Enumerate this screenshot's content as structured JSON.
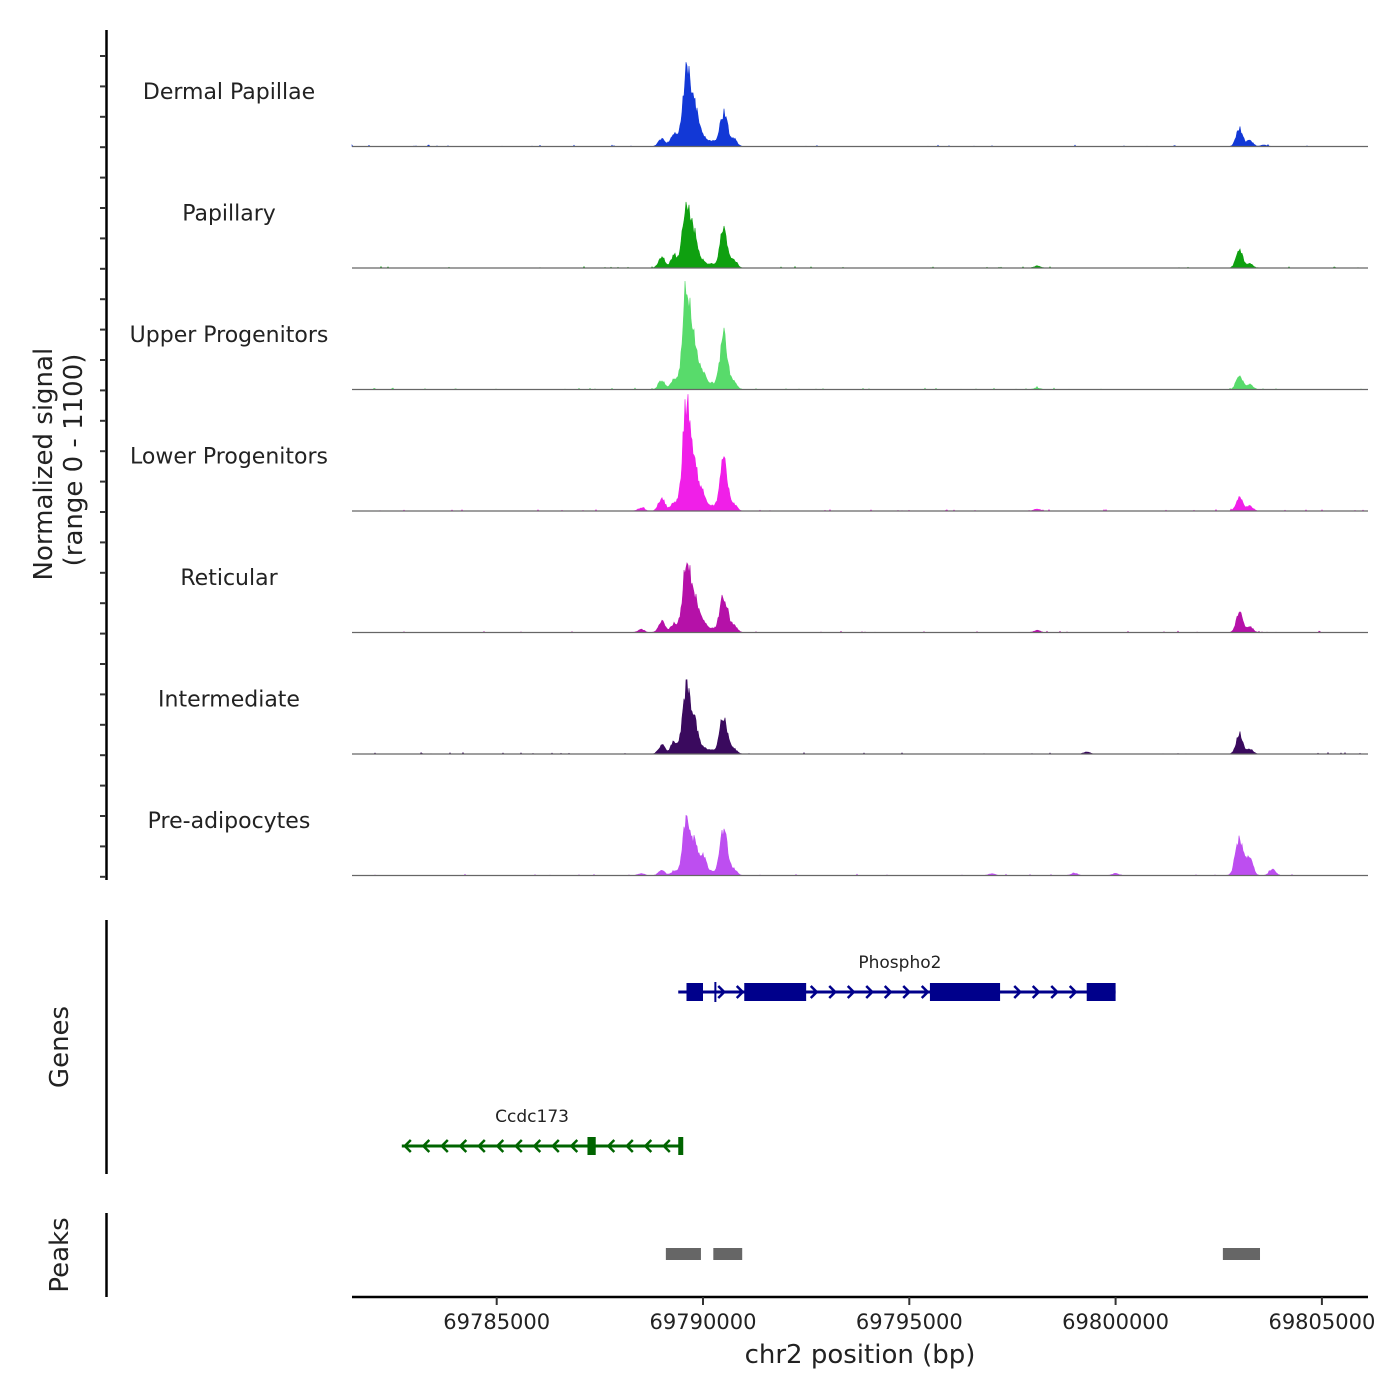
{
  "chart_data": {
    "type": "area",
    "title": "",
    "xlabel": "chr2 position (bp)",
    "ylabel": "Normalized signal\n(range 0 - 1100)",
    "ylabel_lines": [
      "Normalized signal",
      "(range 0 - 1100)"
    ],
    "ylim": [
      0,
      1100
    ],
    "xlim": [
      69781500,
      69806100
    ],
    "x_ticks": [
      69785000,
      69790000,
      69795000,
      69800000,
      69805000
    ],
    "x_tick_labels": [
      "69785000",
      "69790000",
      "69795000",
      "69800000",
      "69805000"
    ],
    "tracks": [
      {
        "name": "Dermal Papillae",
        "color": "#1238D6",
        "peaks": [
          [
            69789000,
            80
          ],
          [
            69789300,
            130
          ],
          [
            69789600,
            740
          ],
          [
            69789800,
            380
          ],
          [
            69790000,
            90
          ],
          [
            69790200,
            60
          ],
          [
            69790500,
            330
          ],
          [
            69790750,
            70
          ],
          [
            69803000,
            180
          ],
          [
            69803250,
            60
          ],
          [
            69803600,
            15
          ]
        ]
      },
      {
        "name": "Papillary",
        "color": "#0FA010",
        "peaks": [
          [
            69789000,
            110
          ],
          [
            69789300,
            130
          ],
          [
            69789600,
            640
          ],
          [
            69789800,
            300
          ],
          [
            69790000,
            70
          ],
          [
            69790200,
            40
          ],
          [
            69790500,
            380
          ],
          [
            69790750,
            80
          ],
          [
            69798100,
            20
          ],
          [
            69803000,
            180
          ],
          [
            69803250,
            40
          ]
        ]
      },
      {
        "name": "Upper Progenitors",
        "color": "#58DB6B",
        "peaks": [
          [
            69789000,
            90
          ],
          [
            69789300,
            110
          ],
          [
            69789600,
            1000
          ],
          [
            69789800,
            400
          ],
          [
            69790000,
            150
          ],
          [
            69790200,
            60
          ],
          [
            69790500,
            540
          ],
          [
            69790750,
            70
          ],
          [
            69798100,
            15
          ],
          [
            69803000,
            140
          ],
          [
            69803250,
            50
          ]
        ]
      },
      {
        "name": "Lower Progenitors",
        "color": "#F01FE8",
        "peaks": [
          [
            69788500,
            30
          ],
          [
            69789000,
            130
          ],
          [
            69789300,
            90
          ],
          [
            69789600,
            1040
          ],
          [
            69789800,
            420
          ],
          [
            69790000,
            160
          ],
          [
            69790200,
            50
          ],
          [
            69790500,
            490
          ],
          [
            69790750,
            60
          ],
          [
            69798100,
            20
          ],
          [
            69803000,
            140
          ],
          [
            69803250,
            50
          ]
        ]
      },
      {
        "name": "Reticular",
        "color": "#B511A8",
        "peaks": [
          [
            69788500,
            30
          ],
          [
            69789000,
            110
          ],
          [
            69789300,
            90
          ],
          [
            69789600,
            680
          ],
          [
            69789800,
            320
          ],
          [
            69790000,
            110
          ],
          [
            69790200,
            40
          ],
          [
            69790500,
            380
          ],
          [
            69790750,
            70
          ],
          [
            69798100,
            20
          ],
          [
            69803000,
            200
          ],
          [
            69803250,
            60
          ]
        ]
      },
      {
        "name": "Intermediate",
        "color": "#3A0A5E",
        "peaks": [
          [
            69789000,
            90
          ],
          [
            69789300,
            120
          ],
          [
            69789600,
            660
          ],
          [
            69789800,
            300
          ],
          [
            69790000,
            70
          ],
          [
            69790200,
            40
          ],
          [
            69790500,
            380
          ],
          [
            69790750,
            50
          ],
          [
            69799300,
            20
          ],
          [
            69803000,
            200
          ],
          [
            69803250,
            50
          ]
        ]
      },
      {
        "name": "Pre-adipocytes",
        "color": "#BD4EF0",
        "peaks": [
          [
            69788500,
            20
          ],
          [
            69789000,
            50
          ],
          [
            69789300,
            40
          ],
          [
            69789600,
            520
          ],
          [
            69789800,
            300
          ],
          [
            69790000,
            200
          ],
          [
            69790200,
            40
          ],
          [
            69790500,
            470
          ],
          [
            69790750,
            60
          ],
          [
            69797000,
            20
          ],
          [
            69799000,
            25
          ],
          [
            69800000,
            20
          ],
          [
            69803000,
            360
          ],
          [
            69803250,
            180
          ],
          [
            69803800,
            60
          ]
        ]
      }
    ],
    "genes": [
      {
        "name": "Ccdc173",
        "strand": "-",
        "color": "#006400",
        "start": 69782700,
        "end": 69789500,
        "exons": [
          [
            69787200,
            69787400
          ],
          [
            69789400,
            69789500
          ]
        ]
      },
      {
        "name": "Phospho2",
        "strand": "+",
        "color": "#00008B",
        "start": 69789400,
        "end": 69800000,
        "exons": [
          [
            69789600,
            69790000
          ],
          [
            69791000,
            69792500
          ],
          [
            69795500,
            69797200
          ],
          [
            69799300,
            69800000
          ]
        ],
        "marks": [
          69790300
        ]
      }
    ],
    "peaks_track": {
      "label": "Peaks",
      "color": "#666666",
      "regions": [
        [
          69789100,
          69789950
        ],
        [
          69790250,
          69790950
        ],
        [
          69802600,
          69803500
        ]
      ]
    },
    "genes_track_label": "Genes"
  }
}
